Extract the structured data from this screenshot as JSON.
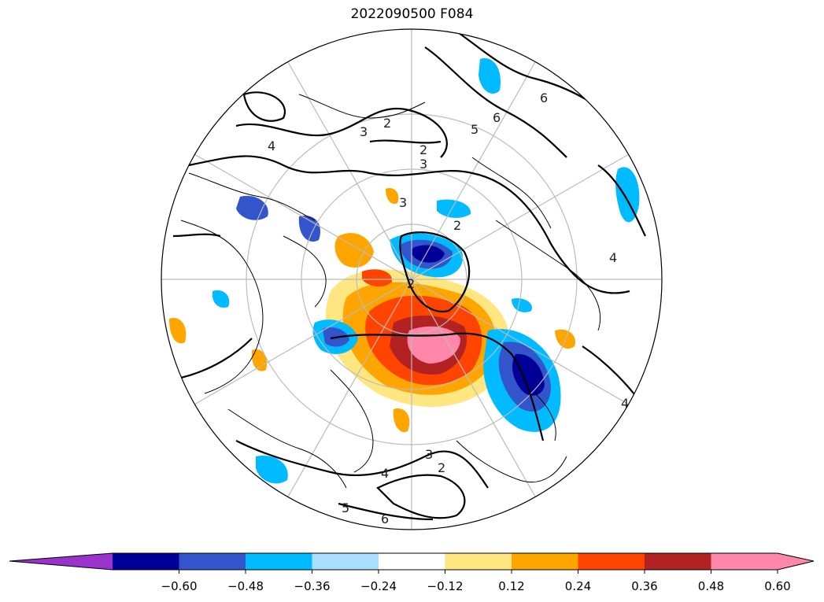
{
  "title": "2022090500 F084",
  "colorbar": {
    "colors": [
      "#9933cc",
      "#000099",
      "#3355cc",
      "#00bbff",
      "#aadfff",
      "#ffffff",
      "#ffe680",
      "#ffa500",
      "#ff4400",
      "#b22222",
      "#ff88aa"
    ],
    "under_color": "#9933cc",
    "over_color": "#ff88aa",
    "ticks": [
      "−0.60",
      "−0.48",
      "−0.36",
      "−0.24",
      "−0.12",
      "0.12",
      "0.24",
      "0.36",
      "0.48",
      "0.60"
    ]
  },
  "map": {
    "projection": "north-polar-stereographic",
    "gridline_color": "#bbbbbb",
    "contour_color": "#000000",
    "contour_labels": [
      "2",
      "2",
      "3",
      "3",
      "3",
      "2",
      "2",
      "4",
      "4",
      "5",
      "6",
      "6",
      "4",
      "5",
      "6",
      "3",
      "2",
      "4"
    ]
  }
}
